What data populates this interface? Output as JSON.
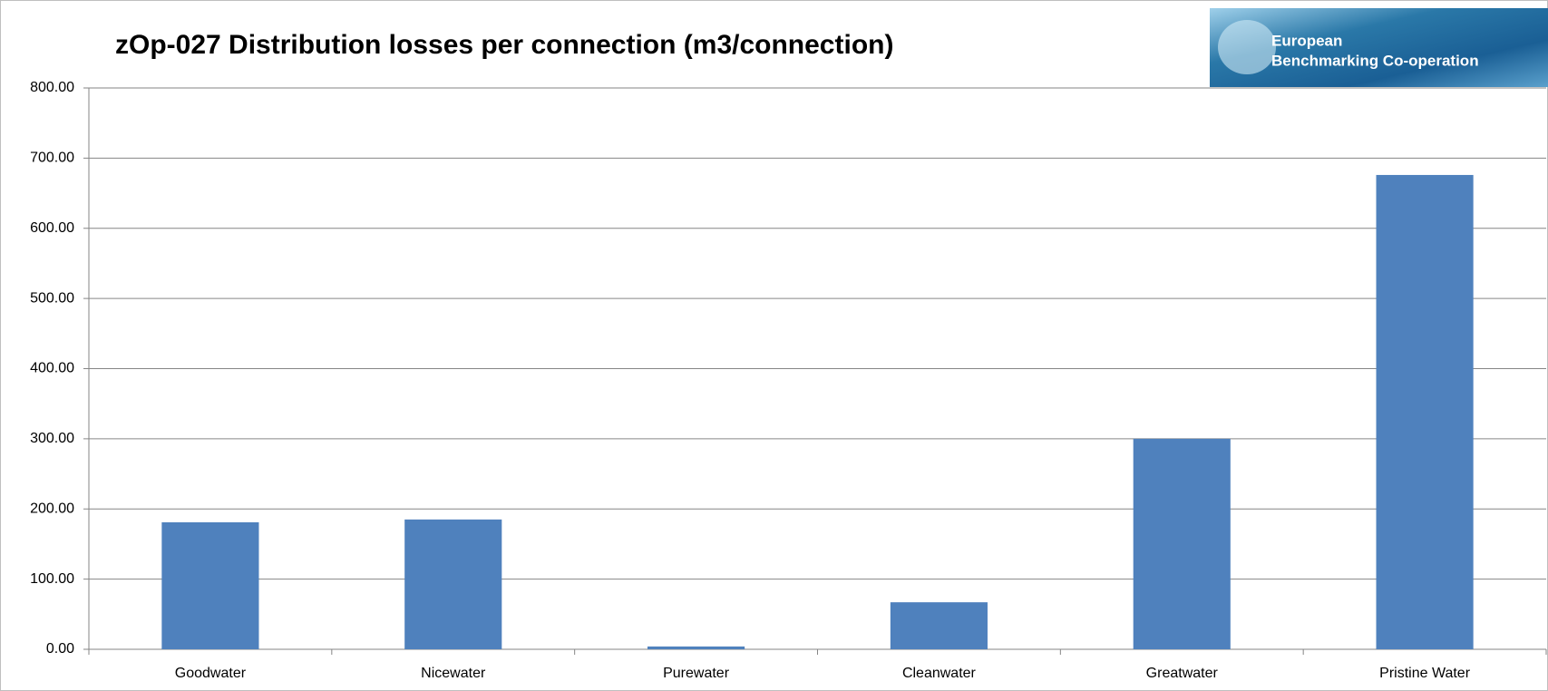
{
  "chart_data": {
    "type": "bar",
    "title": "zOp-027 Distribution losses per connection (m3/connection)",
    "logo_text": [
      "European",
      "Benchmarking Co-operation"
    ],
    "categories": [
      "Goodwater",
      "Nicewater",
      "Purewater",
      "Cleanwater",
      "Greatwater",
      "Pristine Water"
    ],
    "values": [
      181,
      185,
      4,
      67,
      300,
      676
    ],
    "color": "#4f81bd",
    "ylim": [
      0,
      800
    ],
    "yticks": [
      {
        "value": 0,
        "label": "0.00"
      },
      {
        "value": 100,
        "label": "100.00"
      },
      {
        "value": 200,
        "label": "200.00"
      },
      {
        "value": 300,
        "label": "300.00"
      },
      {
        "value": 400,
        "label": "400.00"
      },
      {
        "value": 500,
        "label": "500.00"
      },
      {
        "value": 600,
        "label": "600.00"
      },
      {
        "value": 700,
        "label": "700.00"
      },
      {
        "value": 800,
        "label": "800.00"
      }
    ],
    "grid": true
  }
}
